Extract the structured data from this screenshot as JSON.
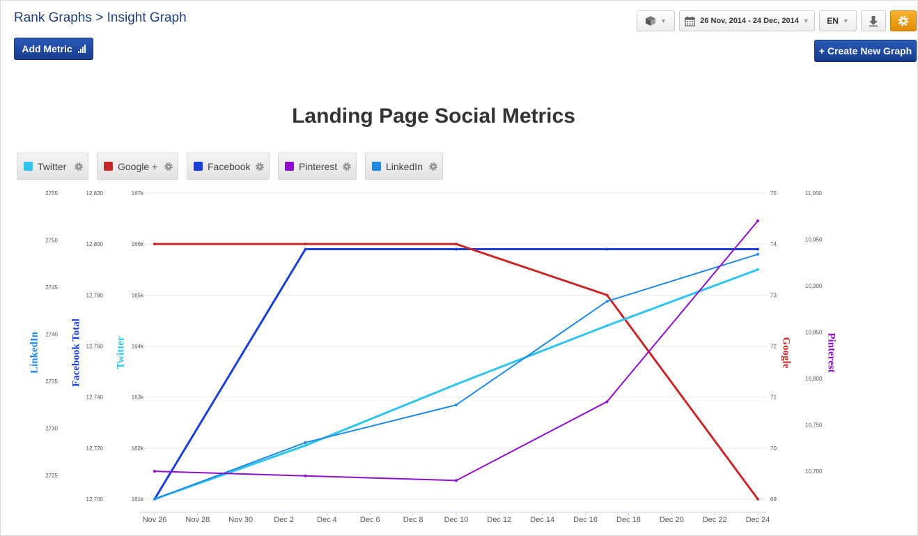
{
  "header": {
    "breadcrumb_root": "Rank Graphs",
    "breadcrumb_sep": ">",
    "breadcrumb_current": "Insight Graph"
  },
  "toolbar": {
    "add_metric_label": "Add Metric",
    "create_graph_label": "+ Create New Graph",
    "date_range": "26 Nov, 2014 - 24 Dec, 2014",
    "language": "EN",
    "settings_color": "#f0a01a"
  },
  "legend": [
    {
      "name": "Twitter",
      "color": "#2fc4ec"
    },
    {
      "name": "Google +",
      "color": "#c62828"
    },
    {
      "name": "Facebook",
      "color": "#1a3fd6"
    },
    {
      "name": "Pinterest",
      "color": "#8e0ec9"
    },
    {
      "name": "LinkedIn",
      "color": "#1e88e5"
    }
  ],
  "chart_data": {
    "type": "line",
    "title": "Landing Page Social Metrics",
    "x_ticks": [
      "Nov 26",
      "Nov 28",
      "Nov 30",
      "Dec 2",
      "Dec 4",
      "Dec 6",
      "Dec 8",
      "Dec 10",
      "Dec 12",
      "Dec 14",
      "Dec 16",
      "Dec 18",
      "Dec 20",
      "Dec 22",
      "Dec 24"
    ],
    "x_range": [
      0,
      28
    ],
    "axes": {
      "linkedin": {
        "label": "LinkedIn",
        "color": "#1e88e5",
        "side": "left",
        "range": [
          2722.5,
          2755
        ],
        "ticks": [
          "2755",
          "2750",
          "2745",
          "2740",
          "2735",
          "2730",
          "2725"
        ],
        "tick_values": [
          2755,
          2750,
          2745,
          2740,
          2735,
          2730,
          2725
        ]
      },
      "facebook": {
        "label": "Facebook Total",
        "color": "#1a3fd6",
        "side": "left",
        "range": [
          12700,
          12820
        ],
        "ticks": [
          "12,820",
          "12,800",
          "12,780",
          "12,760",
          "12,740",
          "12,720",
          "12,700"
        ],
        "tick_values": [
          12820,
          12800,
          12780,
          12760,
          12740,
          12720,
          12700
        ]
      },
      "twitter": {
        "label": "Twitter",
        "color": "#2fc4ec",
        "side": "left",
        "range": [
          161000,
          167000
        ],
        "ticks": [
          "167k",
          "166k",
          "165k",
          "164k",
          "163k",
          "162k",
          "161k"
        ],
        "tick_values": [
          167000,
          166000,
          165000,
          164000,
          163000,
          162000,
          161000
        ]
      },
      "google": {
        "label": "Google",
        "color": "#c62828",
        "side": "right",
        "range": [
          69,
          75
        ],
        "ticks": [
          "75",
          "74",
          "73",
          "72",
          "71",
          "70",
          "69"
        ],
        "tick_values": [
          75,
          74,
          73,
          72,
          71,
          70,
          69
        ]
      },
      "pinterest": {
        "label": "Pinterest",
        "color": "#8e0ec9",
        "side": "right",
        "range": [
          10670,
          11000
        ],
        "ticks": [
          "11,000",
          "10,950",
          "10,900",
          "10,850",
          "10,800",
          "10,750",
          "10,700"
        ],
        "tick_values": [
          11000,
          10950,
          10900,
          10850,
          10800,
          10750,
          10700
        ]
      }
    },
    "series": [
      {
        "name": "Facebook",
        "axis": "facebook",
        "color": "#1a3fd6",
        "width": 3,
        "x": [
          0,
          7,
          14,
          21,
          28
        ],
        "values": [
          12700,
          12798,
          12798,
          12798,
          12798
        ]
      },
      {
        "name": "Google +",
        "axis": "google",
        "color": "#c62828",
        "width": 3,
        "x": [
          0,
          7,
          14,
          21,
          28
        ],
        "values": [
          74,
          74,
          74,
          73,
          69
        ]
      },
      {
        "name": "Twitter",
        "axis": "twitter",
        "color": "#2fc4ec",
        "width": 3,
        "x": [
          0,
          7,
          14,
          21,
          28
        ],
        "values": [
          161000,
          162050,
          163250,
          164400,
          165500
        ]
      },
      {
        "name": "LinkedIn",
        "axis": "linkedin",
        "color": "#1e88e5",
        "width": 2,
        "x": [
          0,
          7,
          14,
          21,
          28
        ],
        "values": [
          2722.5,
          2728.5,
          2732.5,
          2743.5,
          2748.5
        ]
      },
      {
        "name": "Pinterest",
        "axis": "pinterest",
        "color": "#8e0ec9",
        "width": 2,
        "x": [
          0,
          7,
          14,
          21,
          28
        ],
        "values": [
          10700,
          10695,
          10690,
          10775,
          10970
        ]
      }
    ],
    "grid": true
  }
}
